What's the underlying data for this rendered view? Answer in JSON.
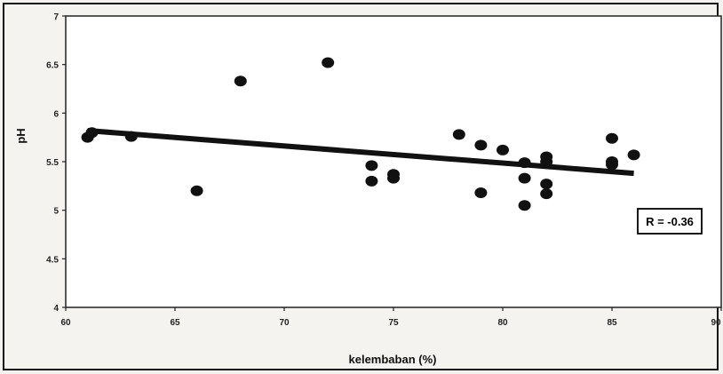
{
  "chart_data": {
    "type": "scatter",
    "title": "",
    "xlabel": "kelembaban (%)",
    "ylabel": "pH",
    "xlim": [
      60,
      90
    ],
    "ylim": [
      4,
      7
    ],
    "x_ticks": [
      "60",
      "65",
      "70",
      "75",
      "80",
      "85",
      "90"
    ],
    "y_ticks": [
      "4",
      "4.5",
      "5",
      "5.5",
      "6",
      "6.5",
      "7"
    ],
    "grid": false,
    "legend": "none",
    "annotation": "R = -0.36",
    "trendline": {
      "x": [
        61,
        86
      ],
      "y": [
        5.82,
        5.38
      ]
    },
    "points": [
      {
        "x": 61,
        "y": 5.75
      },
      {
        "x": 61.2,
        "y": 5.8
      },
      {
        "x": 63,
        "y": 5.76
      },
      {
        "x": 66,
        "y": 5.2
      },
      {
        "x": 68,
        "y": 6.33
      },
      {
        "x": 72,
        "y": 6.52
      },
      {
        "x": 74,
        "y": 5.46
      },
      {
        "x": 74,
        "y": 5.3
      },
      {
        "x": 75,
        "y": 5.37
      },
      {
        "x": 75,
        "y": 5.33
      },
      {
        "x": 78,
        "y": 5.78
      },
      {
        "x": 79,
        "y": 5.67
      },
      {
        "x": 79,
        "y": 5.18
      },
      {
        "x": 80,
        "y": 5.62
      },
      {
        "x": 81,
        "y": 5.49
      },
      {
        "x": 81,
        "y": 5.33
      },
      {
        "x": 81,
        "y": 5.05
      },
      {
        "x": 82,
        "y": 5.55
      },
      {
        "x": 82,
        "y": 5.5
      },
      {
        "x": 82,
        "y": 5.27
      },
      {
        "x": 82,
        "y": 5.17
      },
      {
        "x": 85,
        "y": 5.74
      },
      {
        "x": 85,
        "y": 5.5
      },
      {
        "x": 85,
        "y": 5.47
      },
      {
        "x": 86,
        "y": 5.57
      }
    ],
    "colors": {
      "points": "#111111",
      "trendline": "#111111",
      "plot_bg": "#ffffff"
    }
  }
}
